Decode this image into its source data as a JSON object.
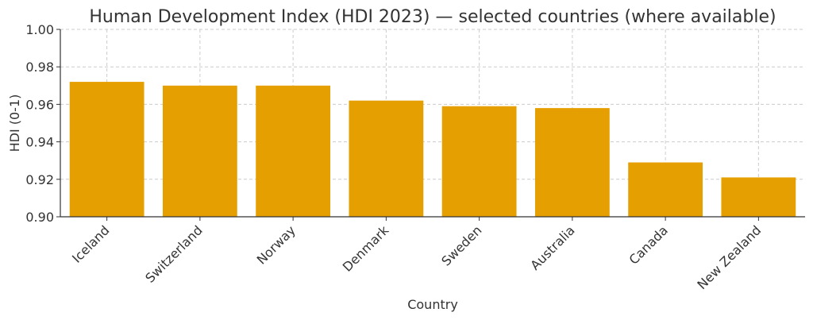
{
  "chart_data": {
    "type": "bar",
    "title": "Human Development Index (HDI 2023) — selected countries (where available)",
    "xlabel": "Country",
    "ylabel": "HDI (0-1)",
    "categories": [
      "Iceland",
      "Switzerland",
      "Norway",
      "Denmark",
      "Sweden",
      "Australia",
      "Canada",
      "New Zealand"
    ],
    "values": [
      0.972,
      0.97,
      0.97,
      0.962,
      0.959,
      0.958,
      0.929,
      0.921
    ],
    "ylim": [
      0.9,
      1.0
    ],
    "yticks": [
      "0.90",
      "0.92",
      "0.94",
      "0.96",
      "0.98",
      "1.00"
    ],
    "grid": true,
    "bar_color": "#E69F00",
    "legend": null
  }
}
